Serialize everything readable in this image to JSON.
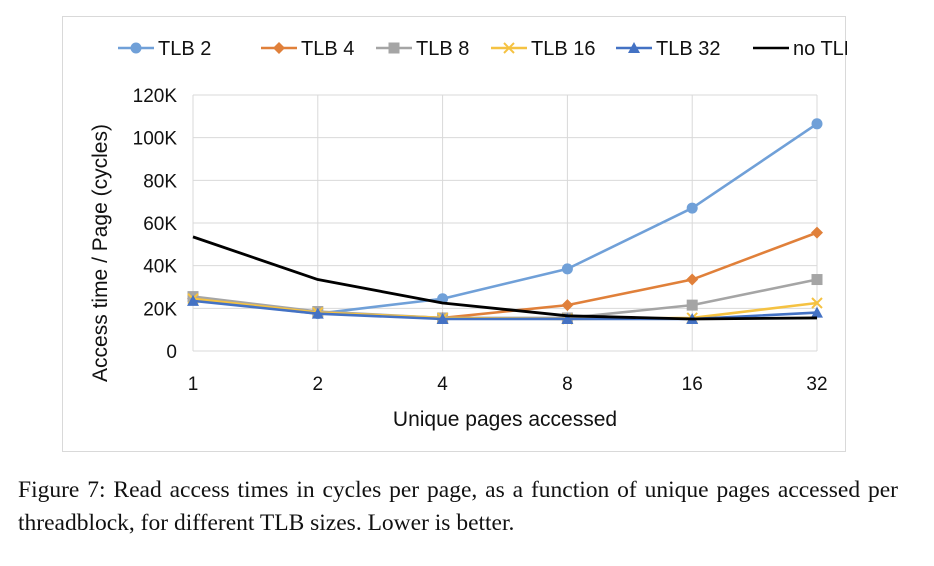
{
  "caption": "Figure 7: Read access times in cycles per page, as a function of unique pages accessed per threadblock, for different TLB sizes. Lower is better.",
  "chart_data": {
    "type": "line",
    "title": "",
    "xlabel": "Unique pages accessed",
    "ylabel": "Access time / Page (cycles)",
    "categories": [
      "1",
      "2",
      "4",
      "8",
      "16",
      "32"
    ],
    "ylim": [
      0,
      120000
    ],
    "yticks": [
      0,
      20000,
      40000,
      60000,
      80000,
      100000,
      120000
    ],
    "ytick_labels": [
      "0",
      "20K",
      "40K",
      "60K",
      "80K",
      "100K",
      "120K"
    ],
    "grid": true,
    "legend_position": "top",
    "series": [
      {
        "name": "TLB 2",
        "color": "#70a0d8",
        "marker": "circle",
        "values": [
          24000,
          17500,
          24500,
          38500,
          67000,
          106500
        ]
      },
      {
        "name": "TLB 4",
        "color": "#e0803a",
        "marker": "diamond",
        "values": [
          24500,
          18000,
          15500,
          21500,
          33500,
          55500
        ]
      },
      {
        "name": "TLB 8",
        "color": "#a5a5a5",
        "marker": "square",
        "values": [
          25500,
          18500,
          15500,
          15500,
          21500,
          33500
        ]
      },
      {
        "name": "TLB 16",
        "color": "#f5c242",
        "marker": "x",
        "values": [
          24500,
          18000,
          15500,
          15000,
          15500,
          22500
        ]
      },
      {
        "name": "TLB 32",
        "color": "#4472c4",
        "marker": "triangle",
        "values": [
          23500,
          17500,
          15000,
          15000,
          15000,
          18000
        ]
      },
      {
        "name": "no TLB",
        "color": "#000000",
        "marker": "none",
        "values": [
          53500,
          33500,
          22500,
          16500,
          15000,
          15500
        ]
      }
    ]
  }
}
